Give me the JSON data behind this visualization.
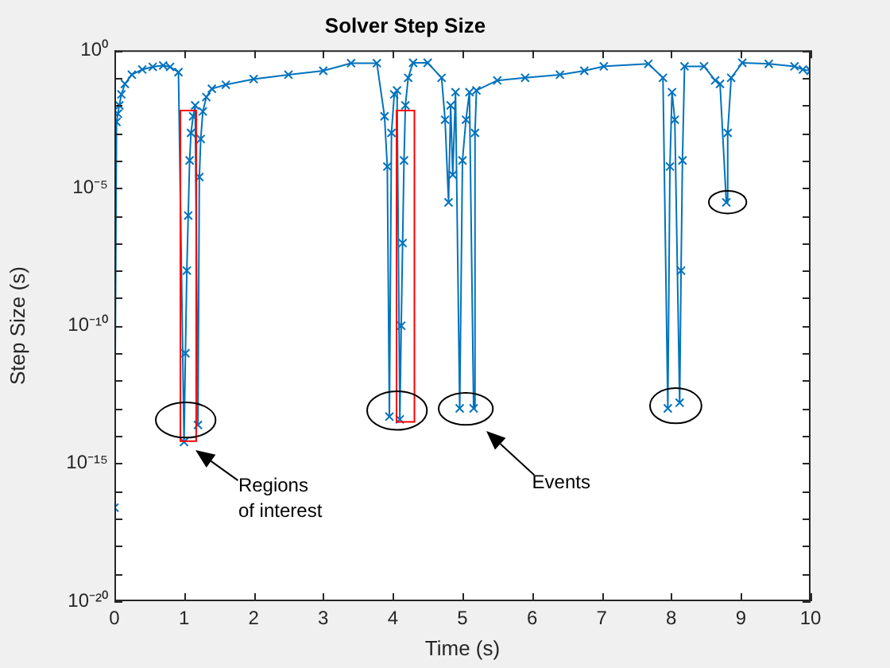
{
  "chart_data": {
    "type": "line",
    "title": "Solver Step Size",
    "xlabel": "Time (s)",
    "ylabel": "Step Size (s)",
    "annotations": [
      "Regions of interest",
      "Events"
    ],
    "log": "y",
    "marker": "cross",
    "line_style": "solid",
    "grid": false,
    "xlim": [
      0,
      10
    ],
    "xticks": [
      0,
      1,
      2,
      3,
      4,
      5,
      6,
      7,
      8,
      9,
      10
    ],
    "ylim": [
      1e-20,
      1
    ],
    "yticks": [
      {
        "value": 1,
        "label": "10⁰"
      },
      {
        "value": 0.1,
        "label": null
      },
      {
        "value": 0.01,
        "label": null
      },
      {
        "value": 0.001,
        "label": null
      },
      {
        "value": 0.0001,
        "label": null
      },
      {
        "value": 1e-05,
        "label": "10⁻⁵"
      },
      {
        "value": 1e-06,
        "label": null
      },
      {
        "value": 1e-07,
        "label": null
      },
      {
        "value": 1e-08,
        "label": null
      },
      {
        "value": 1e-09,
        "label": null
      },
      {
        "value": 1e-10,
        "label": "10⁻¹⁰"
      },
      {
        "value": 1e-11,
        "label": null
      },
      {
        "value": 1e-12,
        "label": null
      },
      {
        "value": 1e-13,
        "label": null
      },
      {
        "value": 1e-14,
        "label": null
      },
      {
        "value": 1e-15,
        "label": "10⁻¹⁵"
      },
      {
        "value": 1e-16,
        "label": null
      },
      {
        "value": 1e-17,
        "label": null
      },
      {
        "value": 1e-18,
        "label": null
      },
      {
        "value": 1e-19,
        "label": null
      },
      {
        "value": 1e-20,
        "label": "10⁻²⁰"
      }
    ],
    "series": [
      {
        "color": "#0072bd",
        "x": [
          0,
          0.03,
          0.05,
          0.07,
          0.1,
          0.15,
          0.25,
          0.4,
          0.55,
          0.7,
          0.8,
          0.92,
          1.0,
          1.02,
          1.04,
          1.06,
          1.08,
          1.1,
          1.13,
          1.16,
          1.2,
          1.22,
          1.24,
          1.27,
          1.32,
          1.4,
          1.6,
          2.0,
          2.5,
          3.0,
          3.4,
          3.77,
          3.88,
          3.92,
          3.95,
          3.98,
          4.02,
          4.06,
          4.1,
          4.12,
          4.14,
          4.16,
          4.18,
          4.22,
          4.29,
          4.5,
          4.7,
          4.75,
          4.8,
          4.83,
          4.86,
          4.9,
          4.96,
          5.0,
          5.05,
          5.1,
          5.16,
          5.18,
          5.2,
          5.5,
          5.9,
          6.4,
          6.75,
          7.03,
          7.67,
          7.88,
          7.95,
          7.98,
          8.01,
          8.05,
          8.12,
          8.14,
          8.16,
          8.19,
          8.47,
          8.63,
          8.7,
          8.79,
          8.81,
          8.86,
          9.02,
          9.4,
          9.77,
          9.89,
          10
        ],
        "values": [
          2.5e-17,
          0.0025,
          0.005,
          0.01,
          0.025,
          0.06,
          0.13,
          0.2,
          0.25,
          0.28,
          0.25,
          0.16,
          6e-15,
          1e-11,
          1e-08,
          1e-06,
          0.0001,
          0.001,
          0.004,
          0.01,
          2.5e-14,
          2.5e-05,
          0.0006,
          0.006,
          0.02,
          0.04,
          0.056,
          0.09,
          0.13,
          0.18,
          0.34,
          0.34,
          0.004,
          6e-05,
          5e-14,
          0.001,
          0.025,
          0.035,
          4e-14,
          1e-10,
          1e-07,
          0.0001,
          0.01,
          0.1,
          0.35,
          0.35,
          0.1,
          0.003,
          3e-06,
          0.01,
          3e-05,
          0.03,
          1e-13,
          0.0001,
          0.003,
          0.03,
          1e-13,
          0.001,
          0.035,
          0.08,
          0.1,
          0.13,
          0.18,
          0.26,
          0.32,
          0.1,
          1e-13,
          6e-05,
          0.03,
          0.003,
          1.6e-13,
          1e-08,
          0.0001,
          0.26,
          0.26,
          0.08,
          0.06,
          3e-06,
          0.001,
          0.1,
          0.35,
          0.32,
          0.26,
          0.2,
          0.18
        ]
      }
    ]
  }
}
